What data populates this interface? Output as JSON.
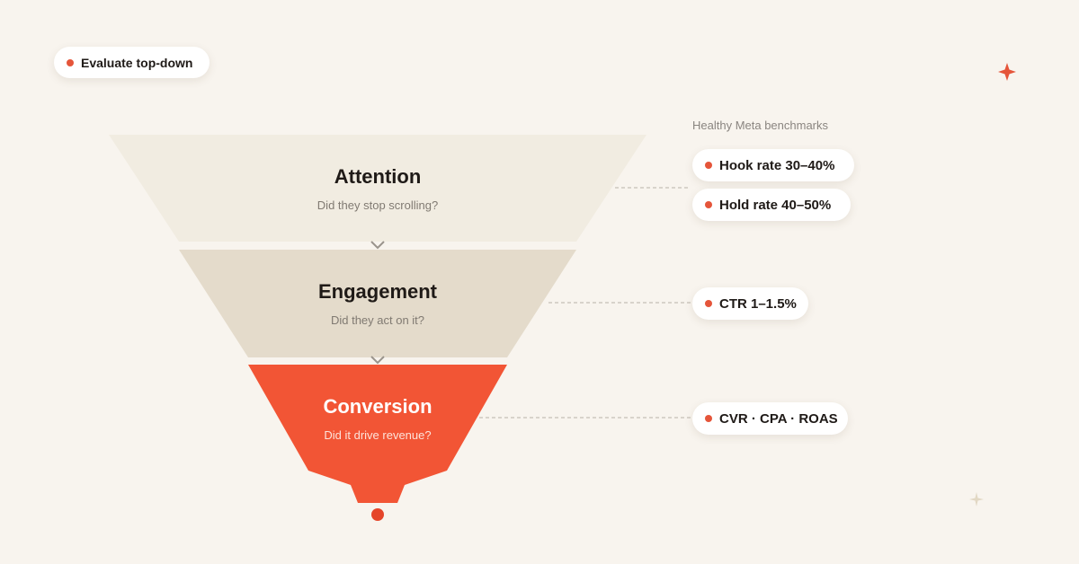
{
  "badge": "Evaluate top-down",
  "stages": [
    {
      "title": "Attention",
      "subtitle": "Did they stop scrolling?"
    },
    {
      "title": "Engagement",
      "subtitle": "Did they act on it?"
    },
    {
      "title": "Conversion",
      "subtitle": "Did it drive revenue?"
    }
  ],
  "benchmarks": {
    "heading": "Healthy Meta benchmarks",
    "items": [
      "Hook rate 30–40%",
      "Hold rate 40–50%",
      "CTR 1–1.5%",
      "CVR · CPA · ROAS"
    ]
  }
}
